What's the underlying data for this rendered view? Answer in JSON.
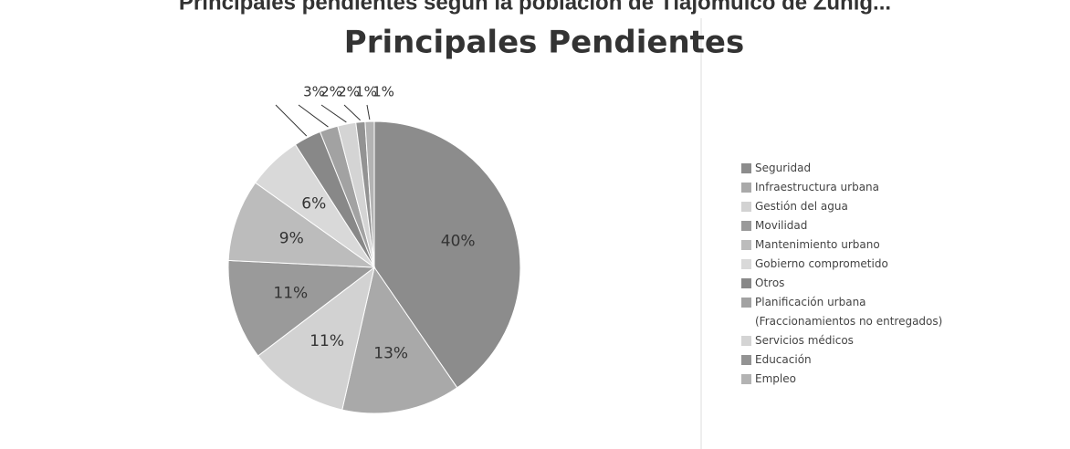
{
  "page_title": "Principales pendientes según la población de Tlajomulco de Zúñig...",
  "chart_data": {
    "type": "pie",
    "title": "Principales Pendientes",
    "categories": [
      "Seguridad",
      "Infraestructura urbana",
      "Gestión del agua",
      "Movilidad",
      "Mantenimiento urbano",
      "Gobierno comprometido",
      "Otros",
      "Planificación urbana (Fraccionamientos no entregados)",
      "Servicios médicos",
      "Educación",
      "Empleo"
    ],
    "values": [
      40,
      13,
      11,
      11,
      9,
      6,
      3,
      2,
      2,
      1,
      1
    ],
    "value_labels": [
      "40%",
      "13%",
      "11%",
      "11%",
      "9%",
      "6%",
      "3%",
      "2%",
      "2%",
      "1%",
      "1%"
    ],
    "colors": [
      "#8c8c8c",
      "#a9a9a9",
      "#d2d2d2",
      "#9a9a9a",
      "#bcbcbc",
      "#d9d9d9",
      "#888888",
      "#a2a2a2",
      "#d4d4d4",
      "#939393",
      "#b3b3b3"
    ],
    "legend": "right"
  }
}
